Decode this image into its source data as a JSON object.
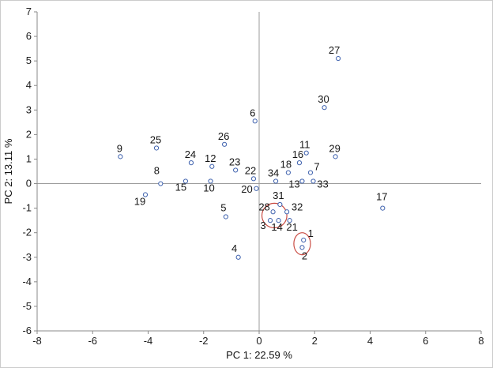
{
  "chart_data": {
    "type": "scatter",
    "title": "",
    "xlabel": "PC 1: 22.59 %",
    "ylabel": "PC 2: 13.11 %",
    "xlim": [
      -8,
      8
    ],
    "ylim": [
      -6,
      7
    ],
    "x_ticks": [
      -8,
      -6,
      -4,
      -2,
      0,
      2,
      4,
      6,
      8
    ],
    "y_ticks": [
      -6,
      -5,
      -4,
      -3,
      -2,
      -1,
      0,
      1,
      2,
      3,
      4,
      5,
      6,
      7
    ],
    "grid": false,
    "legend": null,
    "reference_lines": [
      {
        "axis": "vertical",
        "value": 0
      },
      {
        "axis": "horizontal",
        "value": 0
      }
    ],
    "marker": {
      "shape": "open-circle",
      "stroke": "#3f62ae",
      "fill": "#ffffff",
      "radius": 2.6
    },
    "colors": {
      "axis": "#8a8a8a",
      "reference_line": "#9b9b9b",
      "ellipse": "#c94b42",
      "text": "#1c1c1c"
    },
    "points": [
      {
        "label": "1",
        "x": 1.6,
        "y": -2.3,
        "lx": 9,
        "ly": -4
      },
      {
        "label": "2",
        "x": 1.55,
        "y": -2.6,
        "lx": 3,
        "ly": 15
      },
      {
        "label": "3",
        "x": 0.4,
        "y": -1.5,
        "lx": -9,
        "ly": 11
      },
      {
        "label": "4",
        "x": -0.75,
        "y": -3.0,
        "lx": -5,
        "ly": -7
      },
      {
        "label": "5",
        "x": -1.2,
        "y": -1.35,
        "lx": -3,
        "ly": -7
      },
      {
        "label": "6",
        "x": -0.15,
        "y": 2.55,
        "lx": -3,
        "ly": -6
      },
      {
        "label": "7",
        "x": 1.85,
        "y": 0.45,
        "lx": 8,
        "ly": -3
      },
      {
        "label": "8",
        "x": -3.55,
        "y": 0.0,
        "lx": -5,
        "ly": -12
      },
      {
        "label": "9",
        "x": -5.0,
        "y": 1.1,
        "lx": -1,
        "ly": -6
      },
      {
        "label": "10",
        "x": -1.75,
        "y": 0.1,
        "lx": -2,
        "ly": 13
      },
      {
        "label": "11",
        "x": 1.7,
        "y": 1.25,
        "lx": -2,
        "ly": -6
      },
      {
        "label": "12",
        "x": -1.7,
        "y": 0.7,
        "lx": -2,
        "ly": -6
      },
      {
        "label": "13",
        "x": 1.55,
        "y": 0.1,
        "lx": -10,
        "ly": 8
      },
      {
        "label": "14",
        "x": 0.7,
        "y": -1.5,
        "lx": -2,
        "ly": 13
      },
      {
        "label": "15",
        "x": -2.65,
        "y": 0.1,
        "lx": -6,
        "ly": 12
      },
      {
        "label": "16",
        "x": 1.45,
        "y": 0.85,
        "lx": -2,
        "ly": -6
      },
      {
        "label": "17",
        "x": 4.45,
        "y": -1.0,
        "lx": -1,
        "ly": -10
      },
      {
        "label": "18",
        "x": 1.05,
        "y": 0.45,
        "lx": -3,
        "ly": -6
      },
      {
        "label": "19",
        "x": -4.1,
        "y": -0.45,
        "lx": -7,
        "ly": 13
      },
      {
        "label": "20",
        "x": -0.1,
        "y": -0.2,
        "lx": -12,
        "ly": 5
      },
      {
        "label": "21",
        "x": 1.1,
        "y": -1.5,
        "lx": 3,
        "ly": 13
      },
      {
        "label": "22",
        "x": -0.2,
        "y": 0.2,
        "lx": -4,
        "ly": -6
      },
      {
        "label": "23",
        "x": -0.85,
        "y": 0.55,
        "lx": -1,
        "ly": -6
      },
      {
        "label": "24",
        "x": -2.45,
        "y": 0.85,
        "lx": -1,
        "ly": -6
      },
      {
        "label": "25",
        "x": -3.7,
        "y": 1.45,
        "lx": -1,
        "ly": -6
      },
      {
        "label": "26",
        "x": -1.25,
        "y": 1.6,
        "lx": -1,
        "ly": -6
      },
      {
        "label": "27",
        "x": 2.85,
        "y": 5.1,
        "lx": -5,
        "ly": -6
      },
      {
        "label": "28",
        "x": 0.5,
        "y": -1.15,
        "lx": -11,
        "ly": -2
      },
      {
        "label": "29",
        "x": 2.75,
        "y": 1.1,
        "lx": -1,
        "ly": -6
      },
      {
        "label": "30",
        "x": 2.35,
        "y": 3.1,
        "lx": -1,
        "ly": -6
      },
      {
        "label": "31",
        "x": 0.75,
        "y": -0.85,
        "lx": -2,
        "ly": -7
      },
      {
        "label": "32",
        "x": 1.0,
        "y": -1.15,
        "lx": 13,
        "ly": -2
      },
      {
        "label": "33",
        "x": 1.95,
        "y": 0.1,
        "lx": 12,
        "ly": 8
      },
      {
        "label": "34",
        "x": 0.6,
        "y": 0.1,
        "lx": -3,
        "ly": -6
      }
    ],
    "ellipses": [
      {
        "cx": 0.55,
        "cy": -1.3,
        "rx": 0.45,
        "ry": 0.5
      },
      {
        "cx": 1.55,
        "cy": -2.45,
        "rx": 0.3,
        "ry": 0.45
      }
    ]
  }
}
